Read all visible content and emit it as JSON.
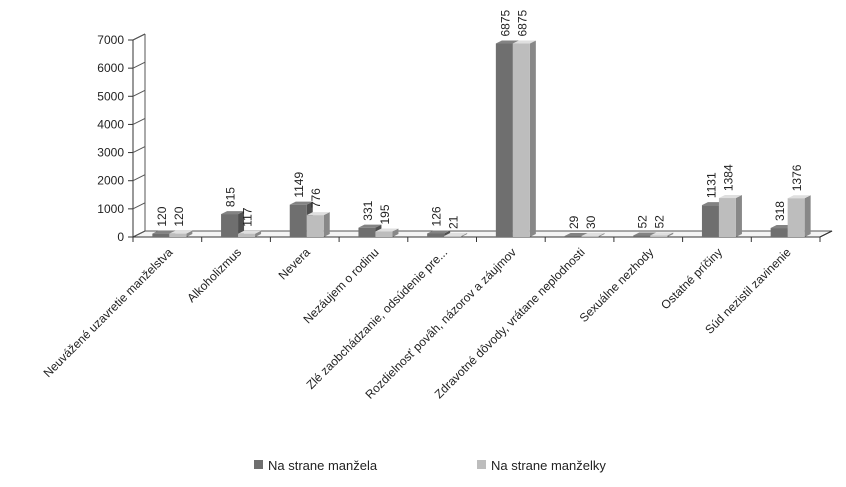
{
  "chart_data": {
    "type": "bar",
    "title": "",
    "xlabel": "",
    "ylabel": "",
    "ylim": [
      0,
      7000
    ],
    "yticks": [
      0,
      1000,
      2000,
      3000,
      4000,
      5000,
      6000,
      7000
    ],
    "grid": false,
    "legend_position": "bottom",
    "style": "3d-clustered-column",
    "categories": [
      "Neuvážené uzavretie manželstva",
      "Alkoholizmus",
      "Nevera",
      "Nezáujem o rodinu",
      "Zlé zaobchádzanie, odsúdenie pre...",
      "Rozdielnosť povâh, názorov a záujmov",
      "Zdravotné dôvody, vrátane neplodnosti",
      "Sexuálne nezhody",
      "Ostatné príčiny",
      "Súd nezistil zavinenie"
    ],
    "series": [
      {
        "name": "Na strane manžela",
        "color": "#6f6f6f",
        "values": [
          120,
          815,
          1149,
          331,
          126,
          6875,
          29,
          52,
          1131,
          318
        ],
        "labels": [
          "120",
          "815",
          "1149",
          "331",
          "126",
          "6875",
          "29",
          "52",
          "1131",
          "318"
        ]
      },
      {
        "name": "Na strane manželky",
        "color": "#bdbdbd",
        "values": [
          120,
          117,
          776,
          195,
          21,
          6875,
          30,
          52,
          1384,
          1376
        ],
        "labels": [
          "120",
          "117",
          "776",
          "195",
          "21",
          "6875",
          "30",
          "52",
          "1384",
          "1376"
        ]
      }
    ]
  }
}
